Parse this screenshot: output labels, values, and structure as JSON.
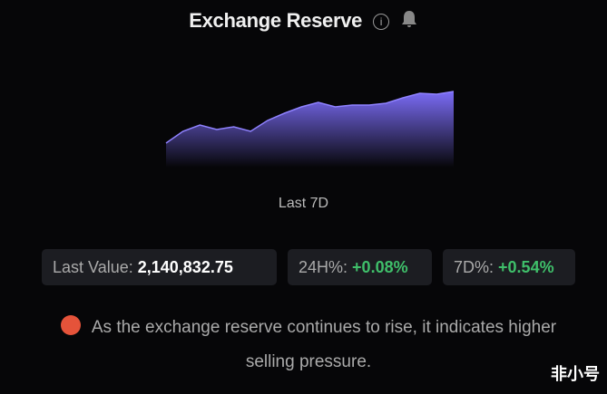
{
  "header": {
    "title": "Exchange Reserve",
    "info_icon": "info-icon",
    "alert_icon": "bell-icon"
  },
  "chart_data": {
    "type": "area",
    "values": [
      27,
      40,
      47,
      42,
      45,
      40,
      52,
      60,
      67,
      72,
      67,
      69,
      69,
      71,
      77,
      82,
      81,
      84
    ],
    "color": "#7b6cf6",
    "grid": false,
    "title": "",
    "xlabel": "",
    "ylabel": ""
  },
  "period": "Last 7D",
  "stats": {
    "last_value_label": "Last Value:",
    "last_value": "2,140,832.75",
    "h24_label": "24H%:",
    "h24_value": "+0.08%",
    "d7_label": "7D%:",
    "d7_value": "+0.54%"
  },
  "message": "As the exchange reserve continues to rise, it indicates higher selling pressure.",
  "watermark": "非小号"
}
